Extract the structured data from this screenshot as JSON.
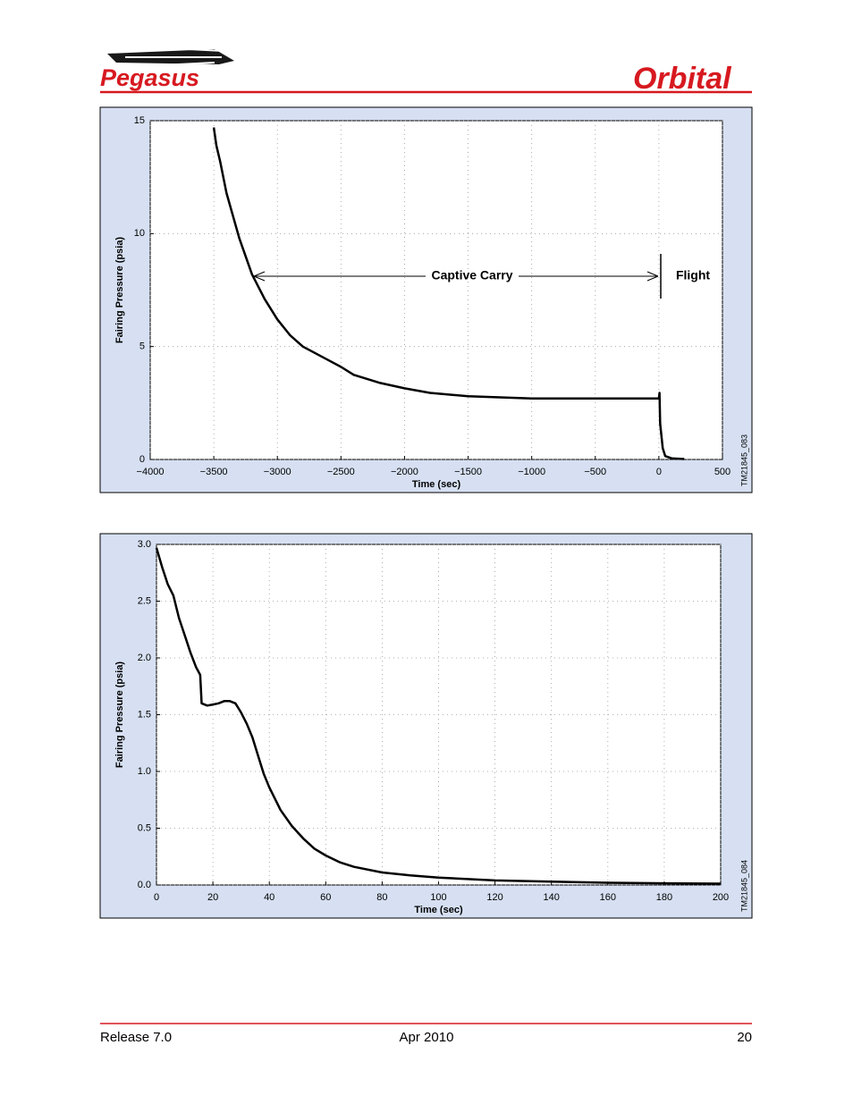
{
  "header": {
    "logo_left": "Pegasus",
    "logo_right": "Orbital"
  },
  "chart_data": [
    {
      "type": "line",
      "x_label": "Time (sec)",
      "y_label": "Fairing Pressure (psia)",
      "annotations": [
        "Captive Carry",
        "Flight"
      ],
      "figure_id": "TM21845_083",
      "x": [
        -3500,
        -3480,
        -3450,
        -3400,
        -3300,
        -3200,
        -3100,
        -3000,
        -2900,
        -2800,
        -2600,
        -2500,
        -2400,
        -2200,
        -2000,
        -1800,
        -1500,
        -1000,
        -500,
        0,
        5,
        10,
        30,
        50,
        100,
        200
      ],
      "values": [
        14.7,
        13.9,
        13.2,
        11.8,
        9.8,
        8.2,
        7.1,
        6.2,
        5.5,
        5.0,
        4.4,
        4.1,
        3.75,
        3.4,
        3.15,
        2.95,
        2.8,
        2.7,
        2.7,
        2.7,
        2.95,
        1.6,
        0.5,
        0.15,
        0.05,
        0.02
      ],
      "color": "#000000",
      "xlim": [
        -4000,
        500
      ],
      "xticks": [
        {
          "value": -4000,
          "label": "−4000"
        },
        {
          "value": -3500,
          "label": "−3500"
        },
        {
          "value": -3000,
          "label": "−3000"
        },
        {
          "value": -2500,
          "label": "−2500"
        },
        {
          "value": -2000,
          "label": "−2000"
        },
        {
          "value": -1500,
          "label": "−1500"
        },
        {
          "value": -1000,
          "label": "−1000"
        },
        {
          "value": -500,
          "label": "−500"
        },
        0,
        500
      ],
      "ylim": [
        0,
        15
      ],
      "yticks": [
        0,
        5,
        10,
        15
      ],
      "grid": true
    },
    {
      "type": "line",
      "x_label": "Time (sec)",
      "y_label": "Fairing Pressure (psia)",
      "figure_id": "TM21845_084",
      "x": [
        0,
        2,
        4,
        6,
        8,
        10,
        12,
        14,
        15.5,
        16,
        18,
        20,
        22,
        24,
        26,
        28,
        30,
        32,
        34,
        36,
        38,
        40,
        44,
        48,
        52,
        56,
        60,
        65,
        70,
        80,
        90,
        100,
        120,
        140,
        160,
        180,
        200
      ],
      "values": [
        2.97,
        2.8,
        2.65,
        2.55,
        2.35,
        2.2,
        2.05,
        1.92,
        1.85,
        1.6,
        1.58,
        1.59,
        1.6,
        1.62,
        1.62,
        1.6,
        1.52,
        1.42,
        1.3,
        1.14,
        0.98,
        0.86,
        0.66,
        0.52,
        0.41,
        0.32,
        0.26,
        0.2,
        0.16,
        0.11,
        0.085,
        0.065,
        0.04,
        0.03,
        0.02,
        0.015,
        0.012
      ],
      "color": "#000000",
      "xlim": [
        0,
        200
      ],
      "xticks": [
        0,
        20,
        40,
        60,
        80,
        100,
        120,
        140,
        160,
        180,
        200
      ],
      "ylim": [
        0,
        3
      ],
      "yticks": [
        {
          "value": 0,
          "label": "0.0"
        },
        {
          "value": 0.5,
          "label": "0.5"
        },
        {
          "value": 1,
          "label": "1.0"
        },
        {
          "value": 1.5,
          "label": "1.5"
        },
        {
          "value": 2,
          "label": "2.0"
        },
        {
          "value": 2.5,
          "label": "2.5"
        },
        {
          "value": 3,
          "label": "3.0"
        }
      ],
      "grid": true
    }
  ],
  "footer": {
    "release": "Release 7.0",
    "date": "Apr 2010",
    "page": "20"
  }
}
